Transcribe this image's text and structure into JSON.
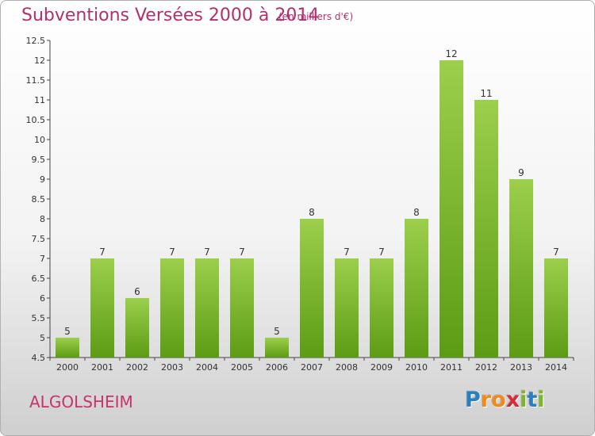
{
  "title": "Subventions Versées 2000 à 2014",
  "subtitle": "(en milliers d'€)",
  "commune": "ALGOLSHEIM",
  "logo": {
    "letters": [
      "P",
      "r",
      "o",
      "x",
      "i",
      "t",
      "i"
    ],
    "colors": [
      "#2a7fc0",
      "#f08a1c",
      "#f08a1c",
      "#d62a3a",
      "#7ab829",
      "#2a7fc0",
      "#7ab829"
    ]
  },
  "colors": {
    "bar_top": "#9ccf4c",
    "bar_bottom": "#5c9c14",
    "text": "#333333",
    "grid": "#cccccc"
  },
  "chart_data": {
    "type": "bar",
    "categories": [
      "2000",
      "2001",
      "2002",
      "2003",
      "2004",
      "2005",
      "2006",
      "2007",
      "2008",
      "2009",
      "2010",
      "2011",
      "2012",
      "2013",
      "2014"
    ],
    "values": [
      5,
      7,
      6,
      7,
      7,
      7,
      5,
      8,
      7,
      7,
      8,
      12,
      11,
      9,
      7
    ],
    "data_labels": [
      "5",
      "7",
      "6",
      "7",
      "7",
      "7",
      "5",
      "8",
      "7",
      "7",
      "8",
      "12",
      "11",
      "9",
      "7"
    ],
    "ylim": [
      4.5,
      12.5
    ],
    "yticks": [
      4.5,
      5,
      5.5,
      6,
      6.5,
      7,
      7.5,
      8,
      8.5,
      9,
      9.5,
      10,
      10.5,
      11,
      11.5,
      12,
      12.5
    ],
    "ytick_labels": [
      "4.5",
      "5",
      "5.5",
      "6",
      "6.5",
      "7",
      "7.5",
      "8",
      "8.5",
      "9",
      "9.5",
      "10",
      "10.5",
      "11",
      "11.5",
      "12",
      "12.5"
    ],
    "title": "Subventions Versées 2000 à 2014",
    "xlabel": "",
    "ylabel": "",
    "grid": false,
    "legend": "none"
  }
}
